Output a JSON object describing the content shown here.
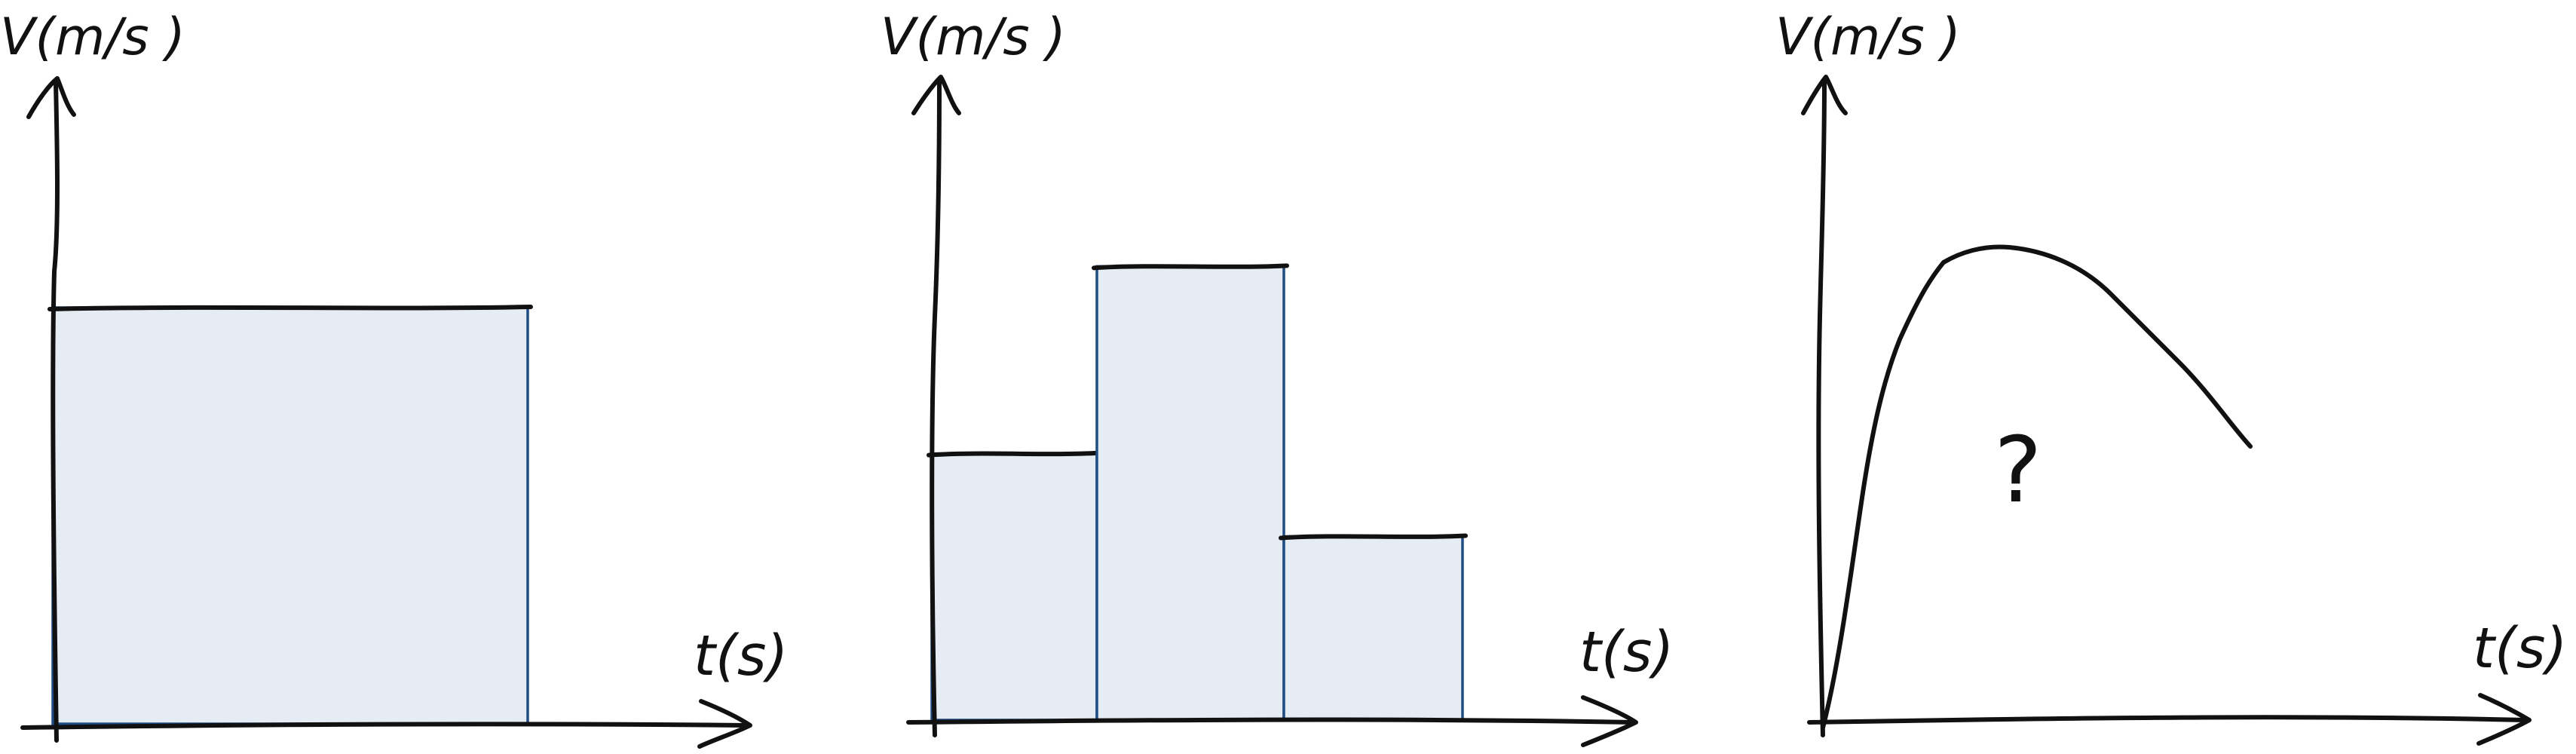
{
  "panels": [
    {
      "y_label": "V(m/s )",
      "x_label": "t(s)",
      "bars": [
        {
          "height": 0.575
        }
      ]
    },
    {
      "y_label": "V(m/s )",
      "x_label": "t(s)",
      "bars": [
        {
          "height": 0.37
        },
        {
          "height": 0.63
        },
        {
          "height": 0.255
        }
      ]
    },
    {
      "y_label": "V(m/s )",
      "x_label": "t(s)",
      "annotation": "?"
    }
  ],
  "colors": {
    "bar_fill": "#e6ecf4",
    "bar_edge": "#1f4d84",
    "ink": "#111111"
  }
}
